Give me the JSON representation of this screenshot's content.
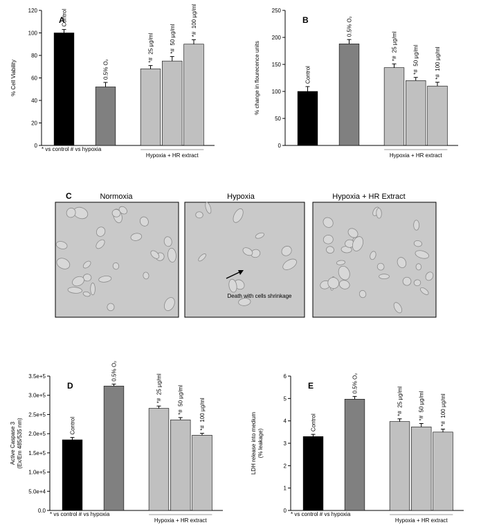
{
  "chart_data": [
    {
      "type": "bar",
      "panel": "A",
      "ylabel": [
        "% Cell Viability"
      ],
      "categories": [
        "Control",
        "0.5% O₂",
        "25 µg/ml",
        "50 µg/ml",
        "100 µg/ml"
      ],
      "values": [
        100,
        52,
        68,
        75,
        90
      ],
      "errors": [
        3,
        4,
        3,
        4,
        4
      ],
      "significance": [
        null,
        null,
        "*#",
        "*#",
        "*#"
      ],
      "colors": [
        "#000000",
        "#808080",
        "#c0c0c0",
        "#c0c0c0",
        "#c0c0c0"
      ],
      "group_label": "Hypoxia + HR extract",
      "footnote": "* vs control  # vs hypoxia",
      "ylim": [
        0,
        120
      ],
      "yticks": [
        0,
        20,
        40,
        60,
        80,
        100,
        120
      ]
    },
    {
      "type": "bar",
      "panel": "B",
      "ylabel": [
        "% change in flourecence units"
      ],
      "categories": [
        "Control",
        "0.5% O₂",
        "25 µg/ml",
        "50 µg/ml",
        "100 µg/ml"
      ],
      "values": [
        100,
        188,
        144,
        120,
        110
      ],
      "errors": [
        9,
        8,
        7,
        6,
        7
      ],
      "significance": [
        null,
        null,
        "*#",
        "*#",
        "*#"
      ],
      "colors": [
        "#000000",
        "#808080",
        "#c0c0c0",
        "#c0c0c0",
        "#c0c0c0"
      ],
      "group_label": "Hypoxia + HR extract",
      "ylim": [
        0,
        250
      ],
      "yticks": [
        0,
        50,
        100,
        150,
        200,
        250
      ]
    },
    {
      "type": "bar",
      "panel": "D",
      "ylabel": [
        "Active Caspase 3",
        "(Ex/Em 485/535 nm)"
      ],
      "categories": [
        "Control",
        "0.5% O₂",
        "25 µg/ml",
        "50 µg/ml",
        "100 µg/ml"
      ],
      "values": [
        184000,
        324000,
        266000,
        236000,
        196000
      ],
      "errors": [
        6000,
        5000,
        6000,
        6000,
        5000
      ],
      "significance": [
        null,
        null,
        "*#",
        "*#",
        "*#"
      ],
      "colors": [
        "#000000",
        "#808080",
        "#c0c0c0",
        "#c0c0c0",
        "#c0c0c0"
      ],
      "group_label": "Hypoxia + HR extract",
      "footnote": "* vs control  # vs hypoxia",
      "ylim": [
        0,
        350000
      ],
      "yticks": [
        {
          "value": 0,
          "label": "0.0"
        },
        {
          "value": 50000,
          "label": "5.0e+4"
        },
        {
          "value": 100000,
          "label": "1.0e+5"
        },
        {
          "value": 150000,
          "label": "1.5e+5"
        },
        {
          "value": 200000,
          "label": "2.0e+5"
        },
        {
          "value": 250000,
          "label": "2.5e+5"
        },
        {
          "value": 300000,
          "label": "3.0e+5"
        },
        {
          "value": 350000,
          "label": "3.5e+5"
        }
      ]
    },
    {
      "type": "bar",
      "panel": "E",
      "ylabel": [
        "LDH release into medium",
        "(% leakage)"
      ],
      "categories": [
        "Control",
        "0.5% O₂",
        "25 µg/ml",
        "50 µg/ml",
        "100 µg/ml"
      ],
      "values": [
        3.3,
        4.97,
        3.97,
        3.73,
        3.5
      ],
      "errors": [
        0.1,
        0.12,
        0.12,
        0.15,
        0.13
      ],
      "significance": [
        null,
        null,
        "*#",
        "*#",
        "*#"
      ],
      "colors": [
        "#000000",
        "#808080",
        "#c0c0c0",
        "#c0c0c0",
        "#c0c0c0"
      ],
      "group_label": "Hypoxia + HR extract",
      "footnote": "* vs control  # vs hypoxia",
      "ylim": [
        0,
        6
      ],
      "yticks": [
        0,
        1,
        2,
        3,
        4,
        5,
        6
      ]
    }
  ],
  "panel_c": {
    "label": "C",
    "titles": [
      "Normoxia",
      "Hypoxia",
      "Hypoxia + HR Extract"
    ],
    "annotation": "Death with cells shrinkage"
  }
}
